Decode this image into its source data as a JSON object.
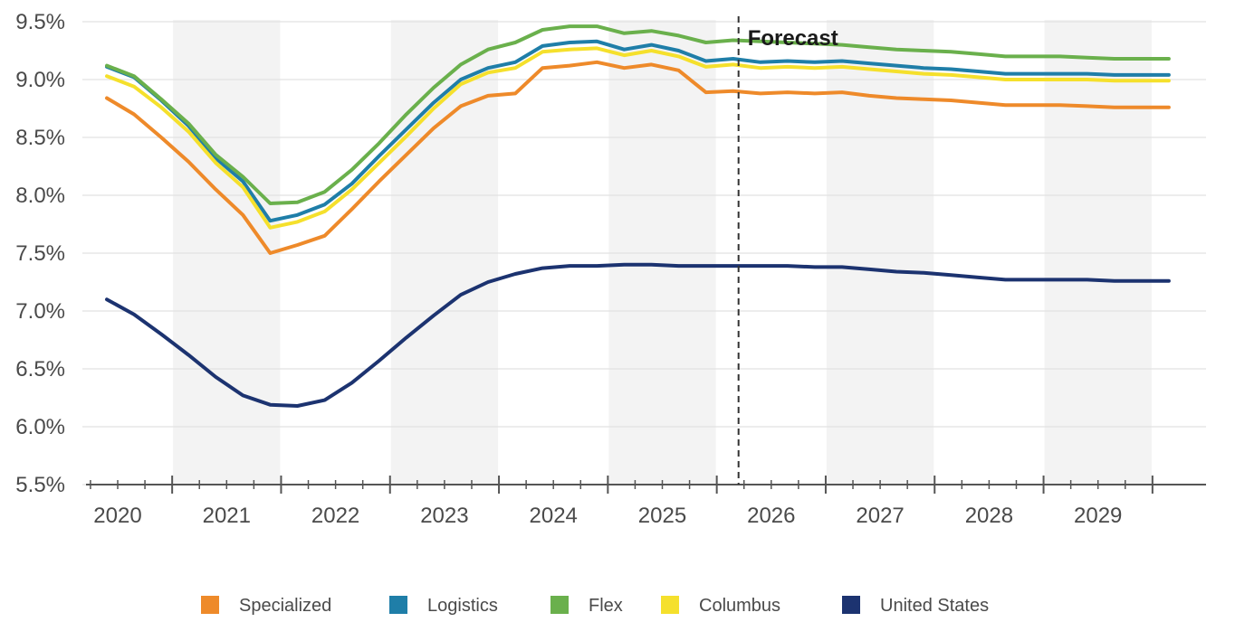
{
  "chart_data": {
    "type": "line",
    "title": "",
    "xlabel": "",
    "ylabel": "",
    "ylim": [
      5.5,
      9.5
    ],
    "y_ticks": [
      "5.5%",
      "6.0%",
      "6.5%",
      "7.0%",
      "7.5%",
      "8.0%",
      "8.5%",
      "9.0%",
      "9.5%"
    ],
    "y_tick_values": [
      5.5,
      6.0,
      6.5,
      7.0,
      7.5,
      8.0,
      8.5,
      9.0,
      9.5
    ],
    "x_ticks": [
      "2020",
      "2021",
      "2022",
      "2023",
      "2024",
      "2025",
      "2026",
      "2027",
      "2028",
      "2029"
    ],
    "xlim": [
      2020.0,
      2030.0
    ],
    "forecast_label": "Forecast",
    "forecast_x": 2025.75,
    "shaded_years": [
      "2021",
      "2023",
      "2025",
      "2027",
      "2029"
    ],
    "legend_position": "bottom",
    "series": [
      {
        "name": "Specialized",
        "color": "#ee8a2a",
        "x": [
          2020.0,
          2020.25,
          2020.5,
          2020.75,
          2021.0,
          2021.25,
          2021.5,
          2021.75,
          2022.0,
          2022.25,
          2022.5,
          2022.75,
          2023.0,
          2023.25,
          2023.5,
          2023.75,
          2024.0,
          2024.25,
          2024.5,
          2024.75,
          2025.0,
          2025.25,
          2025.5,
          2025.75,
          2026.0,
          2026.25,
          2026.5,
          2026.75,
          2027.0,
          2027.25,
          2027.5,
          2027.75,
          2028.0,
          2028.25,
          2028.5,
          2028.75,
          2029.0,
          2029.25,
          2029.5,
          2029.75
        ],
        "y": [
          8.84,
          8.7,
          8.5,
          8.29,
          8.05,
          7.83,
          7.5,
          7.57,
          7.65,
          7.88,
          8.12,
          8.35,
          8.58,
          8.77,
          8.86,
          8.88,
          9.1,
          9.12,
          9.15,
          9.1,
          9.13,
          9.08,
          8.89,
          8.9,
          8.88,
          8.89,
          8.88,
          8.89,
          8.86,
          8.84,
          8.83,
          8.82,
          8.8,
          8.78,
          8.78,
          8.78,
          8.77,
          8.76,
          8.76,
          8.76
        ]
      },
      {
        "name": "Logistics",
        "color": "#1f7ea8",
        "x": [
          2020.0,
          2020.25,
          2020.5,
          2020.75,
          2021.0,
          2021.25,
          2021.5,
          2021.75,
          2022.0,
          2022.25,
          2022.5,
          2022.75,
          2023.0,
          2023.25,
          2023.5,
          2023.75,
          2024.0,
          2024.25,
          2024.5,
          2024.75,
          2025.0,
          2025.25,
          2025.5,
          2025.75,
          2026.0,
          2026.25,
          2026.5,
          2026.75,
          2027.0,
          2027.25,
          2027.5,
          2027.75,
          2028.0,
          2028.25,
          2028.5,
          2028.75,
          2029.0,
          2029.25,
          2029.5,
          2029.75
        ],
        "y": [
          9.11,
          9.02,
          8.82,
          8.6,
          8.32,
          8.12,
          7.78,
          7.83,
          7.92,
          8.1,
          8.34,
          8.57,
          8.8,
          9.0,
          9.1,
          9.15,
          9.29,
          9.32,
          9.33,
          9.26,
          9.3,
          9.25,
          9.16,
          9.18,
          9.15,
          9.16,
          9.15,
          9.16,
          9.14,
          9.12,
          9.1,
          9.09,
          9.07,
          9.05,
          9.05,
          9.05,
          9.05,
          9.04,
          9.04,
          9.04
        ]
      },
      {
        "name": "Flex",
        "color": "#6ab04c",
        "x": [
          2020.0,
          2020.25,
          2020.5,
          2020.75,
          2021.0,
          2021.25,
          2021.5,
          2021.75,
          2022.0,
          2022.25,
          2022.5,
          2022.75,
          2023.0,
          2023.25,
          2023.5,
          2023.75,
          2024.0,
          2024.25,
          2024.5,
          2024.75,
          2025.0,
          2025.25,
          2025.5,
          2025.75,
          2026.0,
          2026.25,
          2026.5,
          2026.75,
          2027.0,
          2027.25,
          2027.5,
          2027.75,
          2028.0,
          2028.25,
          2028.5,
          2028.75,
          2029.0,
          2029.25,
          2029.5,
          2029.75
        ],
        "y": [
          9.12,
          9.03,
          8.83,
          8.62,
          8.35,
          8.16,
          7.93,
          7.94,
          8.03,
          8.22,
          8.45,
          8.7,
          8.93,
          9.13,
          9.26,
          9.32,
          9.43,
          9.46,
          9.46,
          9.4,
          9.42,
          9.38,
          9.32,
          9.34,
          9.33,
          9.32,
          9.31,
          9.3,
          9.28,
          9.26,
          9.25,
          9.24,
          9.22,
          9.2,
          9.2,
          9.2,
          9.19,
          9.18,
          9.18,
          9.18
        ]
      },
      {
        "name": "Columbus",
        "color": "#f5e02c",
        "x": [
          2020.0,
          2020.25,
          2020.5,
          2020.75,
          2021.0,
          2021.25,
          2021.5,
          2021.75,
          2022.0,
          2022.25,
          2022.5,
          2022.75,
          2023.0,
          2023.25,
          2023.5,
          2023.75,
          2024.0,
          2024.25,
          2024.5,
          2024.75,
          2025.0,
          2025.25,
          2025.5,
          2025.75,
          2026.0,
          2026.25,
          2026.5,
          2026.75,
          2027.0,
          2027.25,
          2027.5,
          2027.75,
          2028.0,
          2028.25,
          2028.5,
          2028.75,
          2029.0,
          2029.25,
          2029.5,
          2029.75
        ],
        "y": [
          9.03,
          8.94,
          8.76,
          8.55,
          8.28,
          8.07,
          7.72,
          7.77,
          7.86,
          8.05,
          8.28,
          8.51,
          8.75,
          8.96,
          9.06,
          9.1,
          9.24,
          9.26,
          9.27,
          9.21,
          9.25,
          9.2,
          9.11,
          9.13,
          9.1,
          9.11,
          9.1,
          9.11,
          9.09,
          9.07,
          9.05,
          9.04,
          9.02,
          9.0,
          9.0,
          9.0,
          9.0,
          8.99,
          8.99,
          8.99
        ]
      },
      {
        "name": "United States",
        "color": "#1c3370",
        "x": [
          2020.0,
          2020.25,
          2020.5,
          2020.75,
          2021.0,
          2021.25,
          2021.5,
          2021.75,
          2022.0,
          2022.25,
          2022.5,
          2022.75,
          2023.0,
          2023.25,
          2023.5,
          2023.75,
          2024.0,
          2024.25,
          2024.5,
          2024.75,
          2025.0,
          2025.25,
          2025.5,
          2025.75,
          2026.0,
          2026.25,
          2026.5,
          2026.75,
          2027.0,
          2027.25,
          2027.5,
          2027.75,
          2028.0,
          2028.25,
          2028.5,
          2028.75,
          2029.0,
          2029.25,
          2029.5,
          2029.75
        ],
        "y": [
          7.1,
          6.97,
          6.8,
          6.62,
          6.43,
          6.27,
          6.19,
          6.18,
          6.23,
          6.38,
          6.57,
          6.77,
          6.96,
          7.14,
          7.25,
          7.32,
          7.37,
          7.39,
          7.39,
          7.4,
          7.4,
          7.39,
          7.39,
          7.39,
          7.39,
          7.39,
          7.38,
          7.38,
          7.36,
          7.34,
          7.33,
          7.31,
          7.29,
          7.27,
          7.27,
          7.27,
          7.27,
          7.26,
          7.26,
          7.26
        ]
      }
    ]
  }
}
